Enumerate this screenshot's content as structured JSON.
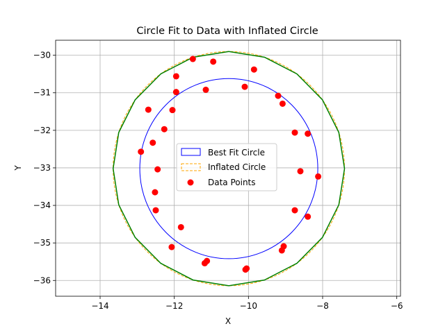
{
  "chart_data": {
    "type": "scatter",
    "title": "Circle Fit to Data with Inflated Circle",
    "xlabel": "X",
    "ylabel": "Y",
    "xlim": [
      -15.2,
      -5.9
    ],
    "ylim": [
      -36.42,
      -29.6
    ],
    "xticks": [
      -14,
      -12,
      -10,
      -8,
      -6
    ],
    "yticks": [
      -30,
      -31,
      -32,
      -33,
      -34,
      -35,
      -36
    ],
    "xtick_labels": [
      "−14",
      "−12",
      "−10",
      "−8",
      "−6"
    ],
    "ytick_labels": [
      "−30",
      "−31",
      "−32",
      "−33",
      "−34",
      "−35",
      "−36"
    ],
    "grid": true,
    "legend_position": "center",
    "best_fit_circle": {
      "center": [
        -10.53,
        -33.02
      ],
      "radius": 2.4,
      "color": "#0000ff"
    },
    "inflated_circle": {
      "center": [
        -10.53,
        -33.02
      ],
      "radius": 3.12,
      "color": "#ffa500",
      "linestyle": "dashed"
    },
    "polygon": {
      "center": [
        -10.53,
        -33.02
      ],
      "radius": 3.12,
      "sides": 20,
      "color": "#008000"
    },
    "series": [
      {
        "name": "Data Points",
        "color": "#ff0000",
        "points": [
          [
            -11.5,
            -30.1
          ],
          [
            -10.95,
            -30.17
          ],
          [
            -9.85,
            -30.38
          ],
          [
            -11.95,
            -30.56
          ],
          [
            -10.1,
            -30.84
          ],
          [
            -11.95,
            -30.98
          ],
          [
            -11.15,
            -30.92
          ],
          [
            -9.2,
            -31.08
          ],
          [
            -9.08,
            -31.29
          ],
          [
            -12.7,
            -31.45
          ],
          [
            -12.05,
            -31.46
          ],
          [
            -12.27,
            -31.97
          ],
          [
            -8.75,
            -32.06
          ],
          [
            -8.4,
            -32.09
          ],
          [
            -12.58,
            -32.33
          ],
          [
            -12.9,
            -32.57
          ],
          [
            -12.45,
            -33.04
          ],
          [
            -8.6,
            -33.09
          ],
          [
            -8.12,
            -33.23
          ],
          [
            -12.52,
            -33.65
          ],
          [
            -12.5,
            -34.13
          ],
          [
            -8.75,
            -34.13
          ],
          [
            -8.4,
            -34.3
          ],
          [
            -11.82,
            -34.58
          ],
          [
            -12.07,
            -35.11
          ],
          [
            -9.05,
            -35.09
          ],
          [
            -9.1,
            -35.2
          ],
          [
            -11.12,
            -35.48
          ],
          [
            -11.18,
            -35.54
          ],
          [
            -10.05,
            -35.68
          ],
          [
            -10.08,
            -35.71
          ]
        ]
      }
    ],
    "legend": [
      {
        "label": "Best Fit Circle",
        "color": "#0000ff",
        "style": "solid-box"
      },
      {
        "label": "Inflated Circle",
        "color": "#ffa500",
        "style": "dashed-box"
      },
      {
        "label": "Data Points",
        "color": "#ff0000",
        "style": "dot"
      }
    ]
  }
}
